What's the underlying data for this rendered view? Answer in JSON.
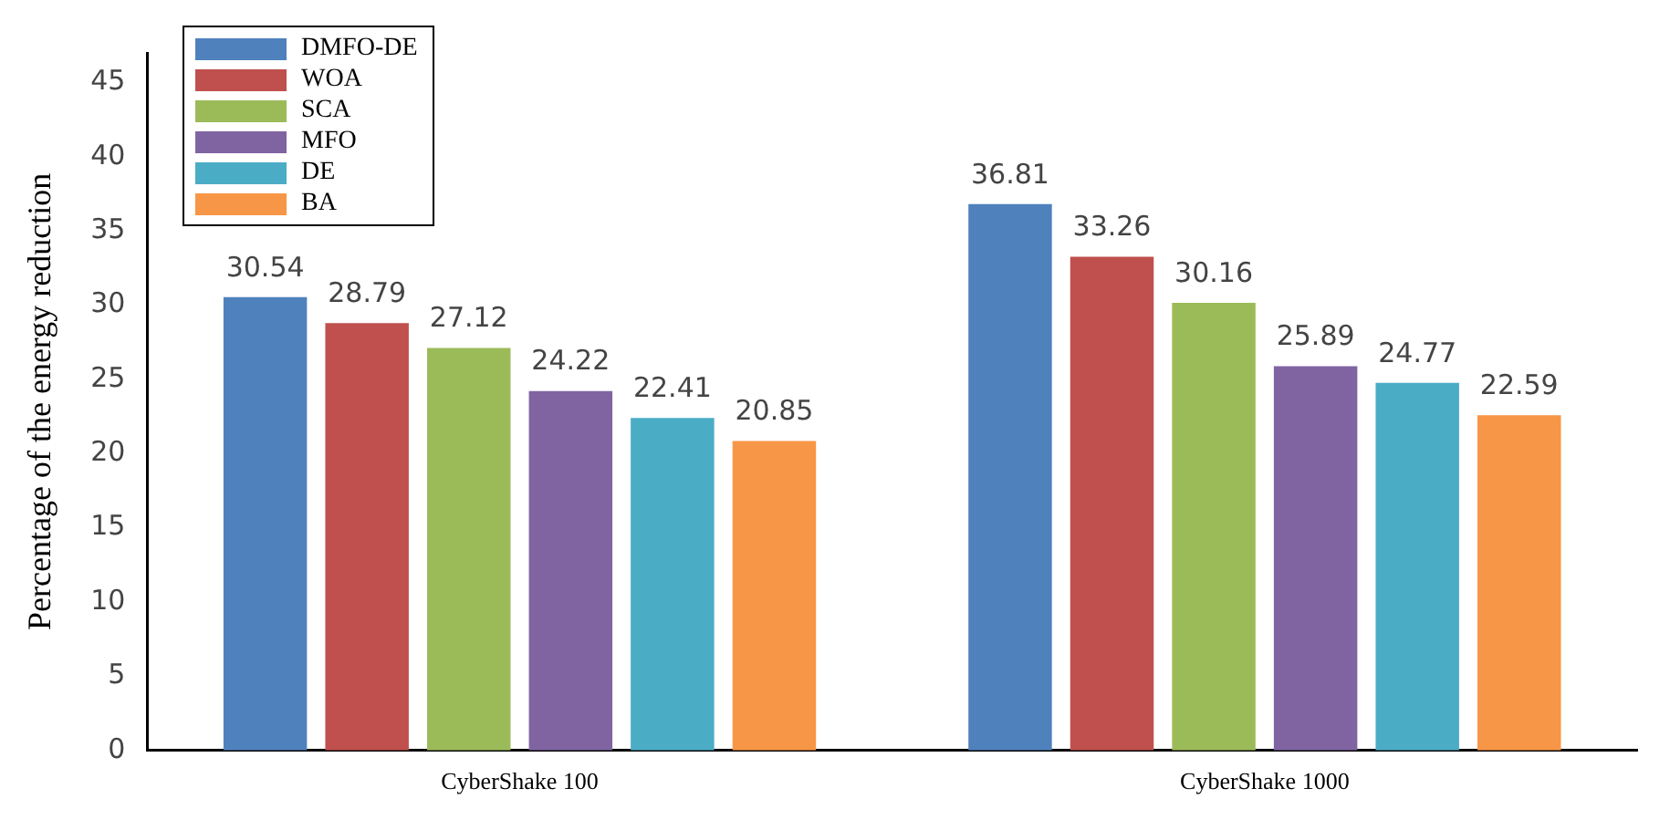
{
  "chart_data": {
    "type": "bar",
    "ylabel": "Percentage of the energy reduction",
    "categories": [
      "CyberShake 100",
      "CyberShake 1000"
    ],
    "series": [
      {
        "name": "DMFO-DE",
        "color": "#4f81bd",
        "values": [
          30.54,
          36.81
        ]
      },
      {
        "name": "WOA",
        "color": "#c0504d",
        "values": [
          28.79,
          33.26
        ]
      },
      {
        "name": "SCA",
        "color": "#9bbb59",
        "values": [
          27.12,
          30.16
        ]
      },
      {
        "name": "MFO",
        "color": "#8064a2",
        "values": [
          24.22,
          25.89
        ]
      },
      {
        "name": "DE",
        "color": "#4bacc6",
        "values": [
          22.41,
          24.77
        ]
      },
      {
        "name": "BA",
        "color": "#f79646",
        "values": [
          20.85,
          22.59
        ]
      }
    ],
    "ylim": [
      0,
      47
    ],
    "yticks": [
      0,
      5,
      10,
      15,
      20,
      25,
      30,
      35,
      40,
      45
    ],
    "grid": false,
    "legend": "top left",
    "data_labels": true
  }
}
